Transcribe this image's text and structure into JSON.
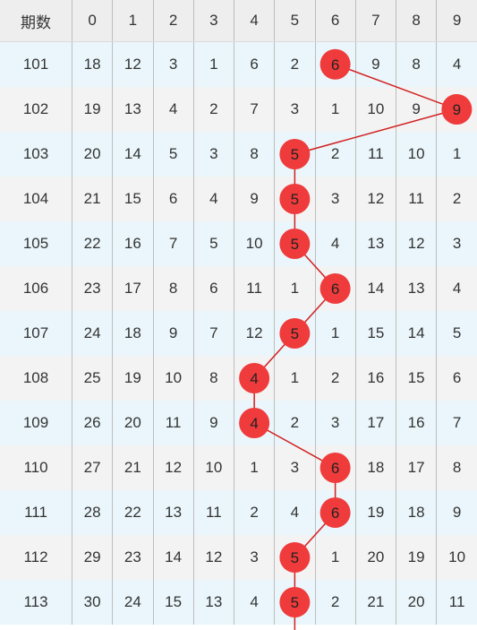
{
  "chart_data": {
    "type": "table",
    "header": [
      "期数",
      "0",
      "1",
      "2",
      "3",
      "4",
      "5",
      "6",
      "7",
      "8",
      "9"
    ],
    "rows": [
      {
        "period": "101",
        "cells": [
          "18",
          "12",
          "3",
          "1",
          "6",
          "2",
          "6",
          "9",
          "8",
          "4"
        ],
        "winning": 6
      },
      {
        "period": "102",
        "cells": [
          "19",
          "13",
          "4",
          "2",
          "7",
          "3",
          "1",
          "10",
          "9",
          "9"
        ],
        "winning": 9
      },
      {
        "period": "103",
        "cells": [
          "20",
          "14",
          "5",
          "3",
          "8",
          "5",
          "2",
          "11",
          "10",
          "1"
        ],
        "winning": 5
      },
      {
        "period": "104",
        "cells": [
          "21",
          "15",
          "6",
          "4",
          "9",
          "5",
          "3",
          "12",
          "11",
          "2"
        ],
        "winning": 5
      },
      {
        "period": "105",
        "cells": [
          "22",
          "16",
          "7",
          "5",
          "10",
          "5",
          "4",
          "13",
          "12",
          "3"
        ],
        "winning": 5
      },
      {
        "period": "106",
        "cells": [
          "23",
          "17",
          "8",
          "6",
          "11",
          "1",
          "6",
          "14",
          "13",
          "4"
        ],
        "winning": 6
      },
      {
        "period": "107",
        "cells": [
          "24",
          "18",
          "9",
          "7",
          "12",
          "5",
          "1",
          "15",
          "14",
          "5"
        ],
        "winning": 5
      },
      {
        "period": "108",
        "cells": [
          "25",
          "19",
          "10",
          "8",
          "4",
          "1",
          "2",
          "16",
          "15",
          "6"
        ],
        "winning": 4
      },
      {
        "period": "109",
        "cells": [
          "26",
          "20",
          "11",
          "9",
          "4",
          "2",
          "3",
          "17",
          "16",
          "7"
        ],
        "winning": 4
      },
      {
        "period": "110",
        "cells": [
          "27",
          "21",
          "12",
          "10",
          "1",
          "3",
          "6",
          "18",
          "17",
          "8"
        ],
        "winning": 6
      },
      {
        "period": "111",
        "cells": [
          "28",
          "22",
          "13",
          "11",
          "2",
          "4",
          "6",
          "19",
          "18",
          "9"
        ],
        "winning": 6
      },
      {
        "period": "112",
        "cells": [
          "29",
          "23",
          "14",
          "12",
          "3",
          "5",
          "1",
          "20",
          "19",
          "10"
        ],
        "winning": 5
      },
      {
        "period": "113",
        "cells": [
          "30",
          "24",
          "15",
          "13",
          "4",
          "5",
          "2",
          "21",
          "20",
          "11"
        ],
        "winning": 5
      }
    ],
    "colors": {
      "ball_fill": "#ef3b3b",
      "ball_text": "#222222",
      "line": "#d21f1f",
      "row_odd": "#f3f3f3",
      "row_even": "#eaf6fb",
      "header_bg": "#eeeeee",
      "divider": "#bdbdbd"
    }
  }
}
